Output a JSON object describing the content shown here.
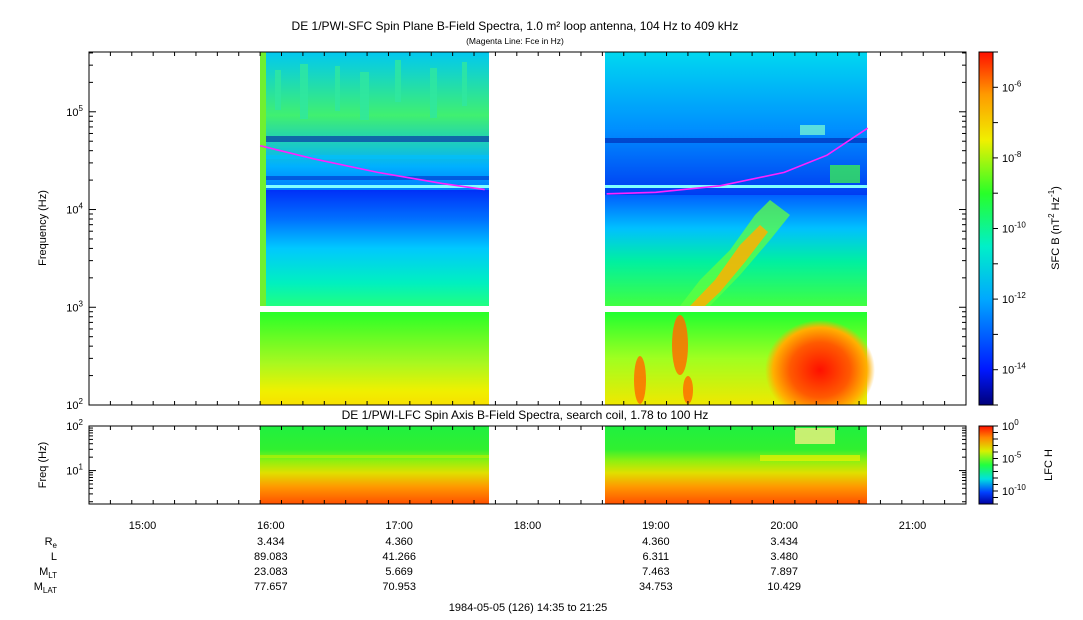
{
  "title": "DE 1/PWI-SFC  Spin Plane B-Field Spectra, 1.0 m² loop antenna, 104 Hz to 409 kHz",
  "subtitle": "(Magenta Line: Fce in Hz)",
  "chart_data": [
    {
      "type": "heatmap",
      "title": "DE 1/PWI-SFC  Spin Plane B-Field Spectra, 1.0 m² loop antenna, 104 Hz to 409 kHz",
      "subtitle": "(Magenta Line: Fce in Hz)",
      "ylabel": "Frequency (Hz)",
      "yscale": "log",
      "ylim": [
        100,
        409000
      ],
      "yticks": [
        {
          "v": 100,
          "b": "10",
          "e": "2"
        },
        {
          "v": 1000,
          "b": "10",
          "e": "3"
        },
        {
          "v": 10000,
          "b": "10",
          "e": "4"
        },
        {
          "v": 100000,
          "b": "10",
          "e": "5"
        }
      ],
      "xlim": [
        "14:35",
        "21:25"
      ],
      "colorbar": {
        "label": "SFC B (nT² Hz⁻¹)",
        "scale": "log",
        "range": [
          1e-15,
          1e-05
        ],
        "ticks": [
          {
            "v": 1e-06,
            "b": "10",
            "e": "-6"
          },
          {
            "v": 1e-08,
            "b": "10",
            "e": "-8"
          },
          {
            "v": 1e-10,
            "b": "10",
            "e": "-10"
          },
          {
            "v": 1e-12,
            "b": "10",
            "e": "-12"
          },
          {
            "v": 1e-14,
            "b": "10",
            "e": "-14"
          }
        ]
      },
      "data_intervals": [
        [
          "15:55",
          "17:40"
        ],
        [
          "18:37",
          "20:39"
        ]
      ],
      "series": [
        {
          "name": "Fce",
          "color": "#ff22ff",
          "points": [
            [
              "15:55",
              45000
            ],
            [
              "16:20",
              33000
            ],
            [
              "16:50",
              24000
            ],
            [
              "17:20",
              18500
            ],
            [
              "17:40",
              16000
            ],
            [
              "18:37",
              14500
            ],
            [
              "19:00",
              15000
            ],
            [
              "19:30",
              17500
            ],
            [
              "20:00",
              24000
            ],
            [
              "20:20",
              36000
            ],
            [
              "20:39",
              68000
            ]
          ]
        }
      ]
    },
    {
      "type": "heatmap",
      "title": "DE 1/PWI-LFC  Spin Axis B-Field Spectra, search coil, 1.78 to 100 Hz",
      "ylabel": "Freq (Hz)",
      "yscale": "log",
      "ylim": [
        1.78,
        100
      ],
      "yticks": [
        {
          "v": 10,
          "b": "10",
          "e": "1"
        },
        {
          "v": 100,
          "b": "10",
          "e": "2"
        }
      ],
      "xlim": [
        "14:35",
        "21:25"
      ],
      "colorbar": {
        "label": "LFC H",
        "scale": "log",
        "range": [
          1e-12,
          1
        ],
        "ticks": [
          {
            "v": 1,
            "b": "10",
            "e": "0"
          },
          {
            "v": 1e-05,
            "b": "10",
            "e": "-5"
          },
          {
            "v": 1e-10,
            "b": "10",
            "e": "-10"
          }
        ]
      },
      "data_intervals": [
        [
          "15:55",
          "17:40"
        ],
        [
          "18:37",
          "20:39"
        ]
      ]
    }
  ],
  "time_axis": {
    "ticks": [
      "15:00",
      "16:00",
      "17:00",
      "18:00",
      "19:00",
      "20:00",
      "21:00"
    ]
  },
  "ephemeris": {
    "rows": [
      {
        "main": "R",
        "sub": "e",
        "values": [
          [
            "16:00",
            "3.434"
          ],
          [
            "17:00",
            "4.360"
          ],
          [
            "19:00",
            "4.360"
          ],
          [
            "20:00",
            "3.434"
          ]
        ]
      },
      {
        "main": "L",
        "sub": "",
        "values": [
          [
            "16:00",
            "89.083"
          ],
          [
            "17:00",
            "41.266"
          ],
          [
            "19:00",
            "6.311"
          ],
          [
            "20:00",
            "3.480"
          ]
        ]
      },
      {
        "main": "M",
        "sub": "LT",
        "values": [
          [
            "16:00",
            "23.083"
          ],
          [
            "17:00",
            "5.669"
          ],
          [
            "19:00",
            "7.463"
          ],
          [
            "20:00",
            "7.897"
          ]
        ]
      },
      {
        "main": "M",
        "sub": "LAT",
        "values": [
          [
            "16:00",
            "77.657"
          ],
          [
            "17:00",
            "70.953"
          ],
          [
            "19:00",
            "34.753"
          ],
          [
            "20:00",
            "10.429"
          ]
        ]
      }
    ]
  },
  "footer": "1984-05-05 (126) 14:35 to 21:25"
}
